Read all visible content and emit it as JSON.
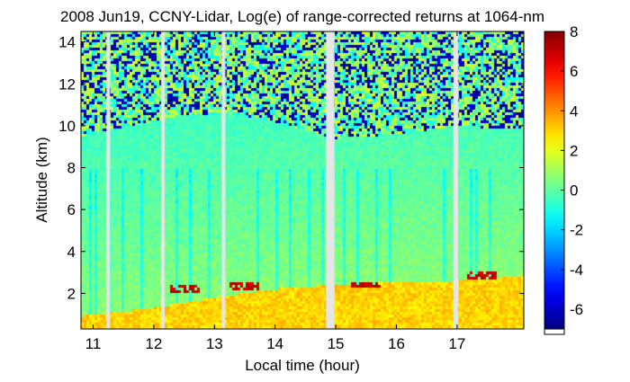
{
  "chart_data": {
    "type": "heatmap",
    "title": "2008 Jun19, CCNY-Lidar, Log(e) of range-corrected returns at 1064-nm",
    "xlabel": "Local time (hour)",
    "ylabel": "Altitude (km)",
    "xlim": [
      10.8,
      18.1
    ],
    "ylim": [
      0.3,
      14.5
    ],
    "x_ticks": [
      11,
      12,
      13,
      14,
      15,
      16,
      17
    ],
    "y_ticks": [
      2,
      4,
      6,
      8,
      10,
      12,
      14
    ],
    "colorbar": {
      "range": [
        -7,
        8
      ],
      "ticks": [
        8,
        6,
        4,
        2,
        0,
        -2,
        -4,
        -6
      ],
      "colormap": "jet"
    },
    "data_gaps_hours": [
      [
        11.22,
        11.28
      ],
      [
        12.12,
        12.18
      ],
      [
        13.12,
        13.18
      ],
      [
        14.84,
        14.98
      ],
      [
        16.94,
        17.02
      ]
    ],
    "features": {
      "boundary_layer_top_km": [
        [
          10.8,
          0.9
        ],
        [
          12.0,
          1.3
        ],
        [
          13.0,
          1.8
        ],
        [
          14.0,
          2.2
        ],
        [
          15.0,
          2.4
        ],
        [
          16.0,
          2.5
        ],
        [
          17.0,
          2.6
        ],
        [
          18.1,
          2.8
        ]
      ],
      "noise_onset_km": [
        [
          10.8,
          9.5
        ],
        [
          11.6,
          10.0
        ],
        [
          12.5,
          10.5
        ],
        [
          13.2,
          10.6
        ],
        [
          14.0,
          10.2
        ],
        [
          15.0,
          9.4
        ],
        [
          16.0,
          9.6
        ],
        [
          17.0,
          10.0
        ],
        [
          18.1,
          9.8
        ]
      ],
      "cloud_top_km": [
        [
          12.5,
          2.2
        ],
        [
          13.5,
          2.3
        ],
        [
          15.5,
          2.4
        ],
        [
          17.4,
          2.9
        ]
      ]
    }
  }
}
